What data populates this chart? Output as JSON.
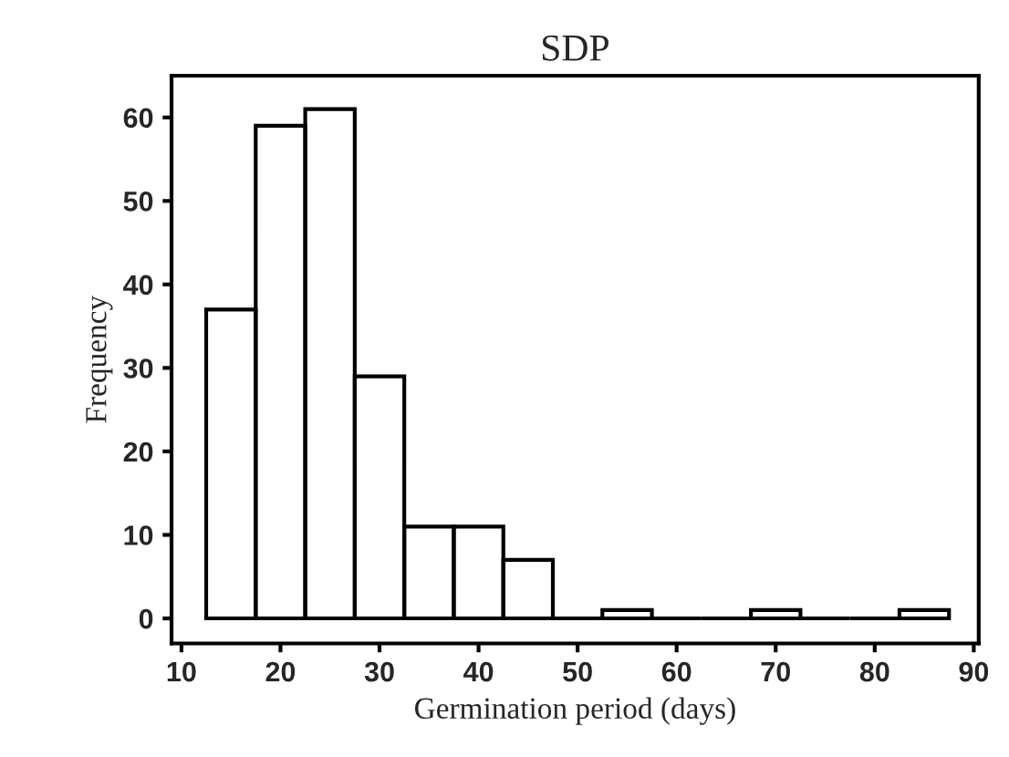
{
  "chart_data": {
    "type": "histogram",
    "title": "SDP",
    "xlabel": "Germination period (days)",
    "ylabel": "Frequency",
    "bins": [
      12.5,
      17.5,
      22.5,
      27.5,
      32.5,
      37.5,
      42.5,
      47.5,
      52.5,
      57.5,
      62.5,
      67.5,
      72.5,
      77.5,
      82.5,
      87.5
    ],
    "values": [
      37,
      59,
      61,
      29,
      11,
      11,
      7,
      0,
      1,
      0,
      0,
      1,
      0,
      0,
      1
    ],
    "color": "#000000",
    "xlim": [
      9,
      90.5
    ],
    "xticks": [
      10,
      20,
      30,
      40,
      50,
      60,
      70,
      80,
      90
    ],
    "ylim": [
      -3,
      65
    ],
    "yticks": [
      0,
      10,
      20,
      30,
      40,
      50,
      60
    ],
    "grid": false
  }
}
